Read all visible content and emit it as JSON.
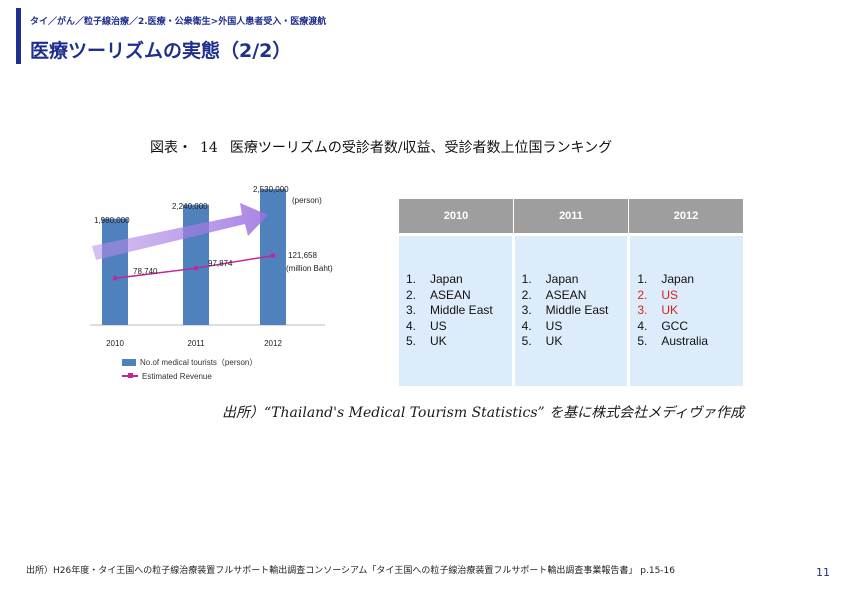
{
  "header": {
    "breadcrumb": "タイ／がん／粒子線治療／2.医療・公衆衛生>外国人患者受入・医療渡航",
    "title": "医療ツーリズムの実態（2/2）"
  },
  "figure": {
    "caption_prefix": "図表・",
    "caption_number": "14",
    "caption_text": "医療ツーリズムの受診者数/収益、受診者数上位国ランキング"
  },
  "chart_data": {
    "type": "bar",
    "categories": [
      "2010",
      "2011",
      "2012"
    ],
    "series": [
      {
        "name": "No.of medical tourists（person）",
        "values": [
          1980000,
          2240000,
          2530000
        ],
        "labels": [
          "1,980,000",
          "2,240,000",
          "2,530,000"
        ],
        "unit": "(person)"
      },
      {
        "name": "Estimated Revenue",
        "values": [
          78740,
          97874,
          121658
        ],
        "labels": [
          "78,740",
          "97,874",
          "121,658"
        ],
        "unit": "(million Baht)"
      }
    ],
    "ylim": [
      0,
      2700000
    ]
  },
  "ranking": {
    "years": [
      "2010",
      "2011",
      "2012"
    ],
    "columns": [
      {
        "items": [
          {
            "n": "1.",
            "name": "Japan",
            "highlight": false
          },
          {
            "n": "2.",
            "name": "ASEAN",
            "highlight": false
          },
          {
            "n": "3.",
            "name": "Middle East",
            "highlight": false
          },
          {
            "n": "4.",
            "name": "US",
            "highlight": false
          },
          {
            "n": "5.",
            "name": "UK",
            "highlight": false
          }
        ]
      },
      {
        "items": [
          {
            "n": "1.",
            "name": "Japan",
            "highlight": false
          },
          {
            "n": "2.",
            "name": "ASEAN",
            "highlight": false
          },
          {
            "n": "3.",
            "name": "Middle East",
            "highlight": false
          },
          {
            "n": "4.",
            "name": "US",
            "highlight": false
          },
          {
            "n": "5.",
            "name": "UK",
            "highlight": false
          }
        ]
      },
      {
        "items": [
          {
            "n": "1.",
            "name": "Japan",
            "highlight": false
          },
          {
            "n": "2.",
            "name": "US",
            "highlight": true
          },
          {
            "n": "3.",
            "name": "UK",
            "highlight": true
          },
          {
            "n": "4.",
            "name": "GCC",
            "highlight": false
          },
          {
            "n": "5.",
            "name": "Australia",
            "highlight": false
          }
        ]
      }
    ],
    "highlight_color": "#e02020"
  },
  "source_note": "出所）“Thailand's Medical Tourism Statistics” を基に株式会社メディヴァ作成",
  "footer": {
    "source": "出所）H26年度・タイ王国への粒子線治療装置フルサポート輸出調査コンソーシアム「タイ王国への粒子線治療装置フルサポート輸出調査事業報告書」 p.15-16",
    "page_number": "11"
  },
  "colors": {
    "accent": "#1f2f8f",
    "bar": "#4f81bd",
    "revenue_line": "#c0279d",
    "table_header": "#9e9e9e",
    "table_body": "#dcecfa"
  }
}
